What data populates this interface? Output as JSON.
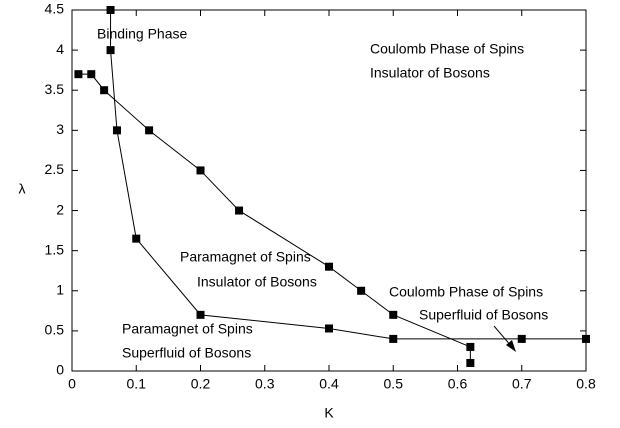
{
  "chart_data": {
    "type": "line",
    "xlabel": "K",
    "ylabel": "λ",
    "xlim": [
      0,
      0.8
    ],
    "ylim": [
      0,
      4.5
    ],
    "xticks": [
      0,
      0.1,
      0.2,
      0.3,
      0.4,
      0.5,
      0.6,
      0.7,
      0.8
    ],
    "yticks": [
      0,
      0.5,
      1,
      1.5,
      2,
      2.5,
      3,
      3.5,
      4,
      4.5
    ],
    "series": [
      {
        "color": "#000000",
        "x": [
          0.06,
          0.06,
          0.07,
          0.1,
          0.2,
          0.4,
          0.5,
          0.7,
          0.8
        ],
        "values": [
          4.5,
          4.0,
          3.0,
          1.65,
          0.7,
          0.53,
          0.4,
          0.4,
          0.4
        ]
      },
      {
        "color": "#000000",
        "x": [
          0.01,
          0.03,
          0.05,
          0.12,
          0.2,
          0.26,
          0.4,
          0.45,
          0.5,
          0.62,
          0.62
        ],
        "values": [
          3.7,
          3.7,
          3.5,
          3.0,
          2.5,
          2.0,
          1.3,
          1.0,
          0.7,
          0.3,
          0.1
        ]
      }
    ],
    "annotations": [
      "Binding Phase",
      "Coulomb Phase of Spins",
      "Insulator of Bosons",
      "Paramagnet of Spins",
      "Insulator of Bosons",
      "Coulomb Phase of Spins",
      "Superfluid of Bosons",
      "Paramagnet of Spins",
      "Superfluid of Bosons"
    ]
  }
}
